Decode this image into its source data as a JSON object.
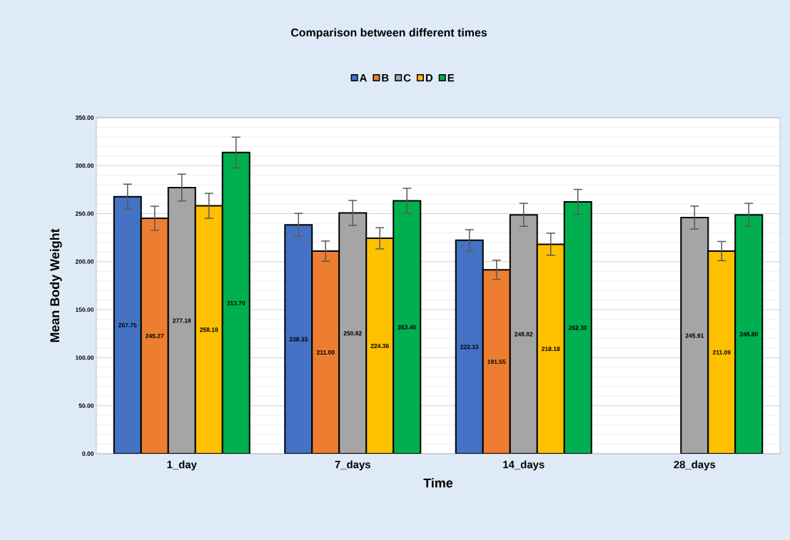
{
  "chart_data": {
    "type": "bar",
    "title": "Comparison between different times",
    "xlabel": "Time",
    "ylabel": "Mean Body Weight",
    "categories": [
      "1_day",
      "7_days",
      "14_days",
      "28_days"
    ],
    "series": [
      {
        "name": "A",
        "color": "#4472c4",
        "values": [
          267.75,
          238.33,
          222.33,
          null
        ],
        "errors": [
          13,
          12,
          11,
          null
        ],
        "value_labels": [
          "267.75",
          "238.33",
          "222.33",
          null
        ]
      },
      {
        "name": "B",
        "color": "#ed7d31",
        "values": [
          245.27,
          211.0,
          191.55,
          null
        ],
        "errors": [
          12.5,
          10.5,
          10,
          null
        ],
        "value_labels": [
          "245.27",
          "211.00",
          "191.55",
          null
        ]
      },
      {
        "name": "C",
        "color": "#a5a5a5",
        "values": [
          277.18,
          250.82,
          248.82,
          245.91
        ],
        "errors": [
          14,
          13,
          12,
          12
        ],
        "value_labels": [
          "277.18",
          "250.82",
          "248.82",
          "245.91"
        ]
      },
      {
        "name": "D",
        "color": "#ffc000",
        "values": [
          258.18,
          224.36,
          218.18,
          211.09
        ],
        "errors": [
          13,
          11,
          11.5,
          10
        ],
        "value_labels": [
          "258.18",
          "224.36",
          "218.18",
          "211.09"
        ]
      },
      {
        "name": "E",
        "color": "#00b050",
        "values": [
          313.7,
          263.4,
          262.3,
          248.8
        ],
        "errors": [
          16,
          13,
          13,
          12
        ],
        "value_labels": [
          "313.70",
          "263.40",
          "262.30",
          "248.80"
        ]
      }
    ],
    "ylim": [
      0,
      350
    ],
    "yticks": [
      {
        "value": 0,
        "label": "0.00"
      },
      {
        "value": 50,
        "label": "50.00"
      },
      {
        "value": 100,
        "label": "100.00"
      },
      {
        "value": 150,
        "label": "150.00"
      },
      {
        "value": 200,
        "label": "200.00"
      },
      {
        "value": 250,
        "label": "250.00"
      },
      {
        "value": 300,
        "label": "300.00"
      },
      {
        "value": 350,
        "label": "350.00"
      }
    ],
    "grid": "y",
    "legend": "top"
  }
}
